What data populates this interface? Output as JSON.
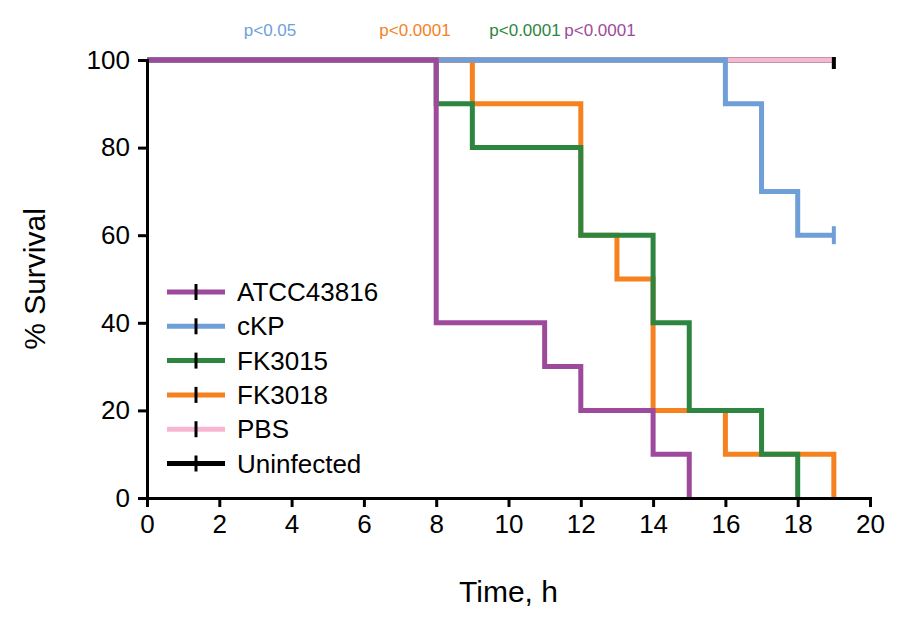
{
  "chart_data": {
    "type": "line",
    "x_label": "Time, h",
    "y_label": "% Survival",
    "x": [
      0,
      8,
      9,
      11,
      12,
      13,
      14,
      15,
      16,
      17,
      18,
      19
    ],
    "xlim": [
      0,
      20
    ],
    "xticks": [
      0,
      2,
      4,
      6,
      8,
      10,
      12,
      14,
      16,
      18,
      20
    ],
    "ylim": [
      0,
      100
    ],
    "yticks": [
      0,
      20,
      40,
      60,
      80,
      100
    ],
    "line_style": "step",
    "marker": "tick",
    "legend": "left",
    "annotations": [
      {
        "text": "p<0.05",
        "color": "#6f9fd8"
      },
      {
        "text": "p<0.0001",
        "color": "#f5821f"
      },
      {
        "text": "p<0.0001",
        "color": "#2e8540"
      },
      {
        "text": "p<0.0001",
        "color": "#9e4a9c"
      }
    ],
    "series": [
      {
        "name": "ATCC43816",
        "color": "#9e4a9c",
        "values": [
          100,
          40,
          40,
          30,
          20,
          20,
          10,
          0,
          null,
          null,
          null,
          null
        ]
      },
      {
        "name": "cKP",
        "color": "#6f9fd8",
        "values": [
          100,
          100,
          100,
          100,
          100,
          100,
          100,
          100,
          90,
          70,
          60,
          60
        ]
      },
      {
        "name": "FK3015",
        "color": "#2e8540",
        "values": [
          100,
          90,
          80,
          80,
          60,
          60,
          40,
          20,
          20,
          10,
          0,
          null
        ]
      },
      {
        "name": "FK3018",
        "color": "#f5821f",
        "values": [
          100,
          100,
          90,
          90,
          60,
          50,
          20,
          20,
          10,
          10,
          10,
          0
        ]
      },
      {
        "name": "PBS",
        "color": "#f7b6d2",
        "values": [
          100,
          100,
          100,
          100,
          100,
          100,
          100,
          100,
          100,
          100,
          100,
          100
        ]
      },
      {
        "name": "Uninfected",
        "color": "#000000",
        "values": [
          100,
          100,
          100,
          100,
          100,
          100,
          100,
          100,
          100,
          100,
          100,
          100
        ]
      }
    ]
  }
}
